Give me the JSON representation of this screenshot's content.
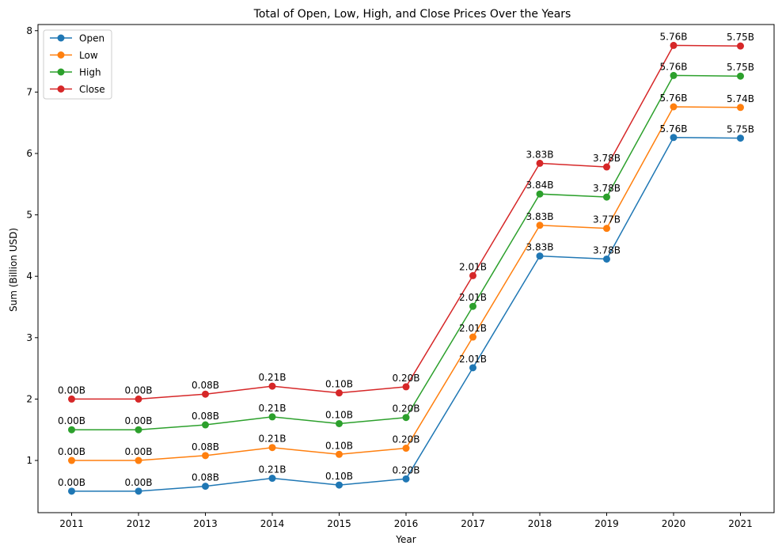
{
  "chart_data": {
    "type": "line",
    "title": "Total of Open, Low, High, and Close Prices Over the Years",
    "xlabel": "Year",
    "ylabel": "Sum (Billion USD)",
    "categories": [
      "2011",
      "2012",
      "2013",
      "2014",
      "2015",
      "2016",
      "2017",
      "2018",
      "2019",
      "2020",
      "2021"
    ],
    "ylim": [
      0.15,
      8.1
    ],
    "yticks": [
      1,
      2,
      3,
      4,
      5,
      6,
      7,
      8
    ],
    "grid": false,
    "legend_position": "top-left",
    "series": [
      {
        "name": "Open",
        "color": "#1f77b4",
        "values": [
          0.5,
          0.5,
          0.58,
          0.71,
          0.6,
          0.7,
          2.51,
          4.33,
          4.28,
          6.26,
          6.25
        ],
        "labels": [
          "0.00B",
          "0.00B",
          "0.08B",
          "0.21B",
          "0.10B",
          "0.20B",
          "2.01B",
          "3.83B",
          "3.78B",
          "5.76B",
          "5.75B"
        ]
      },
      {
        "name": "Low",
        "color": "#ff7f0e",
        "values": [
          1.0,
          1.0,
          1.08,
          1.21,
          1.1,
          1.2,
          3.01,
          4.83,
          4.78,
          6.76,
          6.75
        ],
        "labels": [
          "0.00B",
          "0.00B",
          "0.08B",
          "0.21B",
          "0.10B",
          "0.20B",
          "2.01B",
          "3.83B",
          "3.77B",
          "5.76B",
          "5.74B"
        ]
      },
      {
        "name": "High",
        "color": "#2ca02c",
        "values": [
          1.5,
          1.5,
          1.58,
          1.71,
          1.6,
          1.7,
          3.51,
          5.34,
          5.29,
          7.27,
          7.26
        ],
        "labels": [
          "0.00B",
          "0.00B",
          "0.08B",
          "0.21B",
          "0.10B",
          "0.20B",
          "2.01B",
          "3.84B",
          "3.78B",
          "5.76B",
          "5.75B"
        ]
      },
      {
        "name": "Close",
        "color": "#d62728",
        "values": [
          2.0,
          2.0,
          2.08,
          2.21,
          2.1,
          2.2,
          4.01,
          5.84,
          5.78,
          7.76,
          7.75
        ],
        "labels": [
          "0.00B",
          "0.00B",
          "0.08B",
          "0.21B",
          "0.10B",
          "0.20B",
          "2.01B",
          "3.83B",
          "3.78B",
          "5.76B",
          "5.75B"
        ]
      }
    ]
  }
}
